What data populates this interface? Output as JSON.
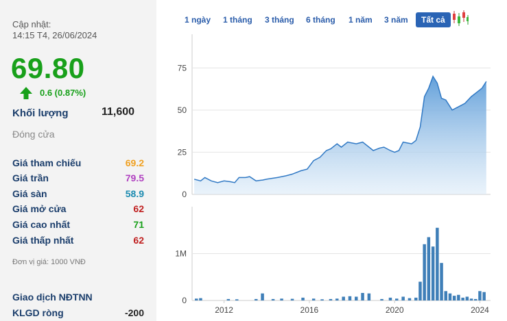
{
  "updated": {
    "label": "Cập nhật:",
    "time": "14:15 T4, 26/06/2024"
  },
  "price": "69.80",
  "change": "0.6 (0.87%)",
  "volume": {
    "label": "Khối lượng",
    "value": "11,600"
  },
  "close_label": "Đóng cửa",
  "stats": [
    {
      "label": "Giá tham chiếu",
      "value": "69.2",
      "color": "#f0a020"
    },
    {
      "label": "Giá trần",
      "value": "79.5",
      "color": "#b040c0"
    },
    {
      "label": "Giá sàn",
      "value": "58.9",
      "color": "#1a8ab0"
    },
    {
      "label": "Giá mở cửa",
      "value": "62",
      "color": "#c02020"
    },
    {
      "label": "Giá cao nhất",
      "value": "71",
      "color": "#18a01a"
    },
    {
      "label": "Giá thấp nhất",
      "value": "62",
      "color": "#c02020"
    }
  ],
  "unit_note": "Đơn vị giá: 1000 VNĐ",
  "foreign": {
    "title": "Giao dịch NĐTNN",
    "net_label": "KLGD ròng",
    "net_value": "-200"
  },
  "tabs": [
    {
      "label": "1 ngày",
      "active": false
    },
    {
      "label": "1 tháng",
      "active": false
    },
    {
      "label": "3 tháng",
      "active": false
    },
    {
      "label": "6 tháng",
      "active": false
    },
    {
      "label": "1 năm",
      "active": false
    },
    {
      "label": "3 năm",
      "active": false
    },
    {
      "label": "Tất cả",
      "active": true
    }
  ],
  "chart_data": {
    "type": "area",
    "price_axis": {
      "ticks": [
        "0",
        "25",
        "50",
        "75"
      ],
      "ylim": [
        0,
        95
      ]
    },
    "volume_axis": {
      "ticks": [
        "0",
        "1M"
      ],
      "ylim": [
        0,
        2000000
      ]
    },
    "x_ticks": [
      "2012",
      "2016",
      "2020",
      "2024"
    ],
    "xlim": [
      2010.5,
      2024.5
    ],
    "price": [
      [
        2010.6,
        9
      ],
      [
        2010.9,
        8
      ],
      [
        2011.1,
        10
      ],
      [
        2011.4,
        8
      ],
      [
        2011.7,
        7
      ],
      [
        2012.0,
        8
      ],
      [
        2012.3,
        7.5
      ],
      [
        2012.5,
        7
      ],
      [
        2012.7,
        10
      ],
      [
        2013.0,
        10
      ],
      [
        2013.2,
        10.5
      ],
      [
        2013.5,
        8
      ],
      [
        2013.8,
        8.5
      ],
      [
        2014.0,
        9
      ],
      [
        2014.5,
        10
      ],
      [
        2014.9,
        11
      ],
      [
        2015.2,
        12
      ],
      [
        2015.6,
        14
      ],
      [
        2015.9,
        15
      ],
      [
        2016.2,
        20
      ],
      [
        2016.5,
        22
      ],
      [
        2016.8,
        26
      ],
      [
        2017.0,
        27
      ],
      [
        2017.3,
        30
      ],
      [
        2017.5,
        28
      ],
      [
        2017.8,
        31
      ],
      [
        2018.2,
        30
      ],
      [
        2018.5,
        31
      ],
      [
        2018.8,
        28
      ],
      [
        2019.0,
        26
      ],
      [
        2019.3,
        27.5
      ],
      [
        2019.5,
        28
      ],
      [
        2019.8,
        26
      ],
      [
        2020.0,
        25
      ],
      [
        2020.2,
        26
      ],
      [
        2020.4,
        31
      ],
      [
        2020.8,
        30
      ],
      [
        2021.0,
        32
      ],
      [
        2021.2,
        40
      ],
      [
        2021.4,
        58
      ],
      [
        2021.6,
        63
      ],
      [
        2021.8,
        70
      ],
      [
        2022.0,
        66
      ],
      [
        2022.2,
        57
      ],
      [
        2022.4,
        56
      ],
      [
        2022.7,
        50
      ],
      [
        2023.0,
        52
      ],
      [
        2023.3,
        54
      ],
      [
        2023.6,
        58
      ],
      [
        2023.9,
        61
      ],
      [
        2024.1,
        63
      ],
      [
        2024.3,
        67
      ]
    ],
    "volume": [
      [
        2010.7,
        40000
      ],
      [
        2010.9,
        50000
      ],
      [
        2012.2,
        30000
      ],
      [
        2012.6,
        25000
      ],
      [
        2013.5,
        30000
      ],
      [
        2013.8,
        150000
      ],
      [
        2014.3,
        30000
      ],
      [
        2014.7,
        40000
      ],
      [
        2015.2,
        35000
      ],
      [
        2015.7,
        60000
      ],
      [
        2016.2,
        40000
      ],
      [
        2016.6,
        25000
      ],
      [
        2017.0,
        30000
      ],
      [
        2017.3,
        40000
      ],
      [
        2017.6,
        80000
      ],
      [
        2017.9,
        90000
      ],
      [
        2018.2,
        80000
      ],
      [
        2018.5,
        160000
      ],
      [
        2018.8,
        150000
      ],
      [
        2019.4,
        30000
      ],
      [
        2019.8,
        60000
      ],
      [
        2020.1,
        40000
      ],
      [
        2020.4,
        80000
      ],
      [
        2020.7,
        50000
      ],
      [
        2021.0,
        60000
      ],
      [
        2021.2,
        400000
      ],
      [
        2021.4,
        1200000
      ],
      [
        2021.6,
        1350000
      ],
      [
        2021.8,
        1150000
      ],
      [
        2022.0,
        1550000
      ],
      [
        2022.2,
        800000
      ],
      [
        2022.4,
        200000
      ],
      [
        2022.6,
        150000
      ],
      [
        2022.8,
        100000
      ],
      [
        2023.0,
        120000
      ],
      [
        2023.2,
        60000
      ],
      [
        2023.4,
        80000
      ],
      [
        2023.6,
        40000
      ],
      [
        2023.8,
        30000
      ],
      [
        2024.0,
        200000
      ],
      [
        2024.2,
        180000
      ]
    ]
  }
}
